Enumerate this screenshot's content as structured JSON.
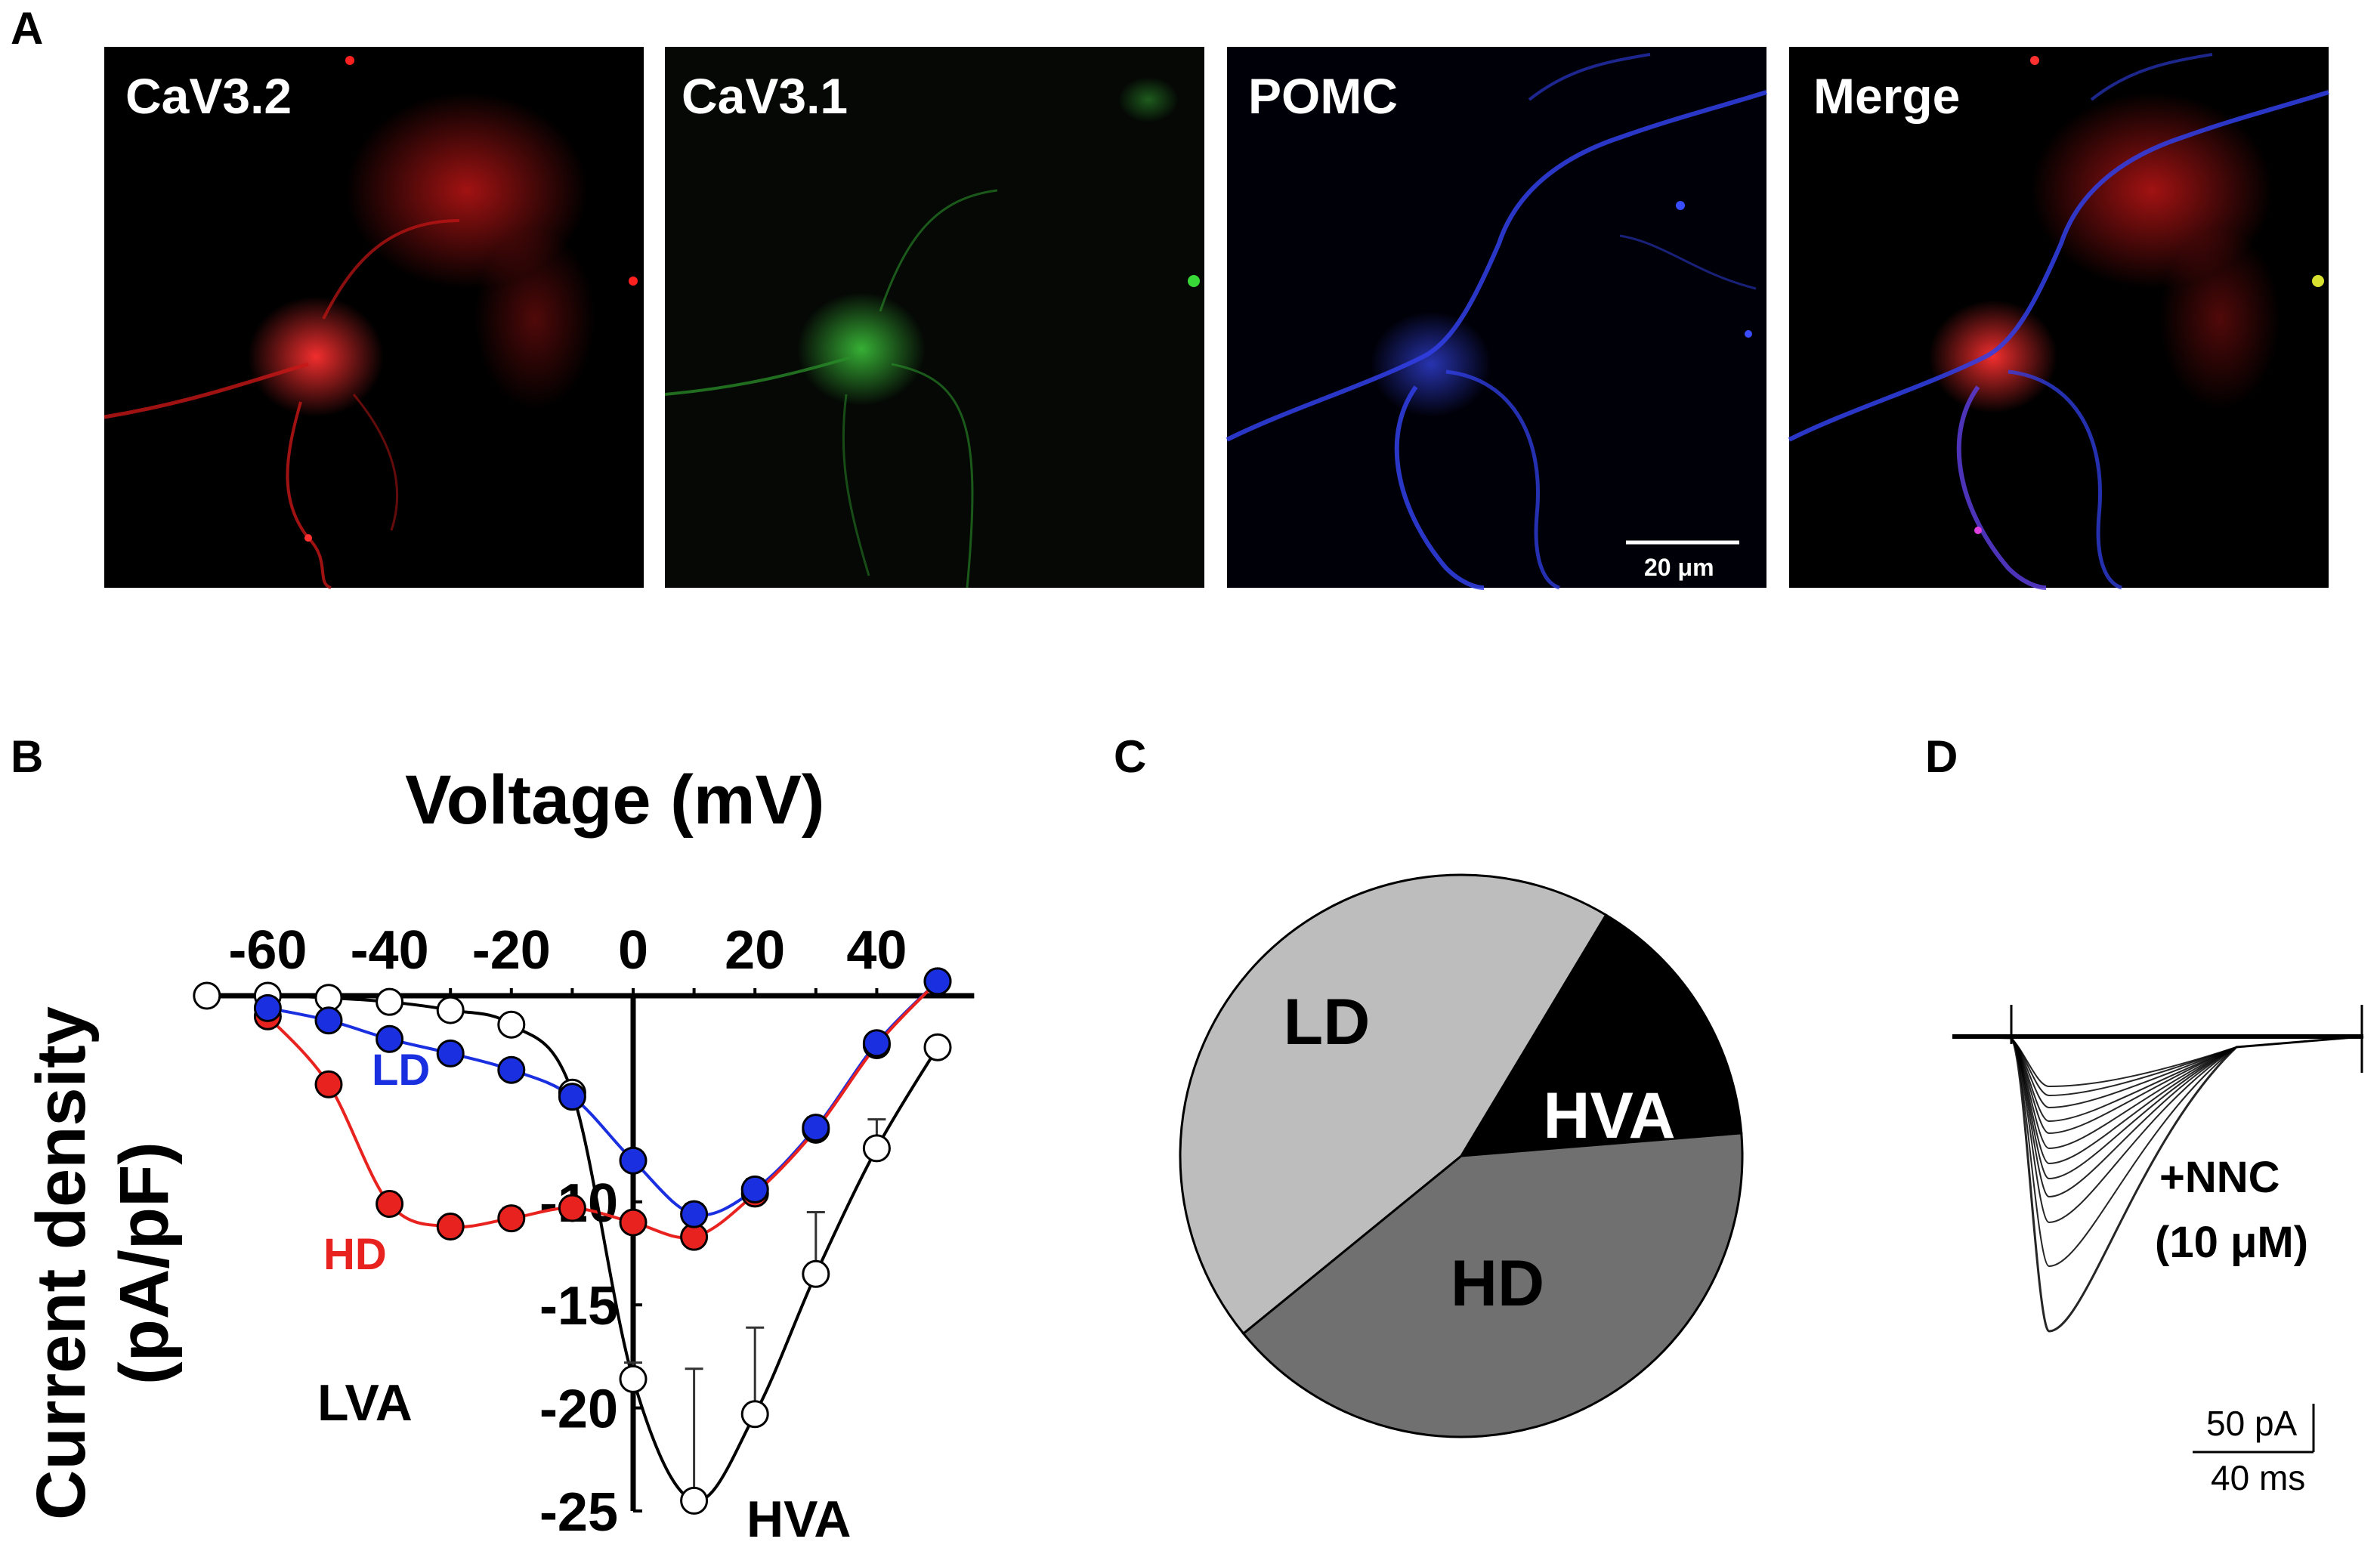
{
  "panels": {
    "a": {
      "letter": "A",
      "images": [
        {
          "label": "CaV3.2",
          "channel": "red"
        },
        {
          "label": "CaV3.1",
          "channel": "green"
        },
        {
          "label": "POMC",
          "channel": "blue"
        },
        {
          "label": "Merge",
          "channel": "merge"
        }
      ],
      "scale_bar_label": "20 μm"
    },
    "b": {
      "letter": "B"
    },
    "c": {
      "letter": "C"
    },
    "d": {
      "letter": "D",
      "treatment_label": "+NNC",
      "concentration_label": "(10 μM)",
      "scale_current_label": "50 pA",
      "scale_time_label": "40 ms"
    }
  },
  "colors": {
    "ld": "#1a2fe0",
    "hd": "#e8231f",
    "hva": "#ffffff",
    "pie_ld": "#bdbdbd",
    "pie_hd": "#707070",
    "pie_hva": "#000000",
    "red_channel": "#e01818",
    "green_channel": "#2faa2a",
    "blue_channel": "#2a3cf0"
  },
  "chart_data": [
    {
      "type": "line",
      "xlabel": "Voltage (mV)",
      "ylabel": "Current density",
      "ylabel_unit": "(pA/pF)",
      "xlim": [
        -70,
        50
      ],
      "ylim": [
        -25,
        0
      ],
      "xticks": [
        -60,
        -40,
        -20,
        0,
        20,
        40
      ],
      "yticks": [
        -10,
        -15,
        -20,
        -25
      ],
      "series": [
        {
          "name": "LD",
          "marker": "filled",
          "x": [
            -60,
            -50,
            -40,
            -30,
            -20,
            -10,
            0,
            10,
            20,
            30,
            40,
            50
          ],
          "y": [
            -0.6,
            -1.2,
            -2.1,
            -2.8,
            -3.6,
            -4.9,
            -8.0,
            -10.6,
            -9.4,
            -6.4,
            -2.3,
            0.7
          ]
        },
        {
          "name": "HD",
          "marker": "filled",
          "x": [
            -60,
            -50,
            -40,
            -30,
            -20,
            -10,
            0,
            10,
            20,
            30,
            40,
            50
          ],
          "y": [
            -1.0,
            -4.3,
            -10.1,
            -11.2,
            -10.8,
            -10.3,
            -11.0,
            -11.7,
            -9.6,
            -6.5,
            -2.4,
            0.7
          ]
        },
        {
          "name": "HVA",
          "marker": "open",
          "x": [
            -70,
            -60,
            -50,
            -40,
            -30,
            -20,
            -10,
            0,
            10,
            20,
            30,
            40,
            50
          ],
          "y": [
            0,
            0,
            -0.1,
            -0.3,
            -0.7,
            -1.4,
            -4.7,
            -18.6,
            -24.5,
            -20.3,
            -13.5,
            -7.4,
            -2.5
          ]
        }
      ],
      "region_labels": [
        "LVA",
        "HVA"
      ]
    },
    {
      "type": "pie",
      "slices": [
        {
          "label": "LD",
          "value": 44.5
        },
        {
          "label": "HVA",
          "value": 15.1
        },
        {
          "label": "HD",
          "value": 40.4
        }
      ]
    }
  ]
}
